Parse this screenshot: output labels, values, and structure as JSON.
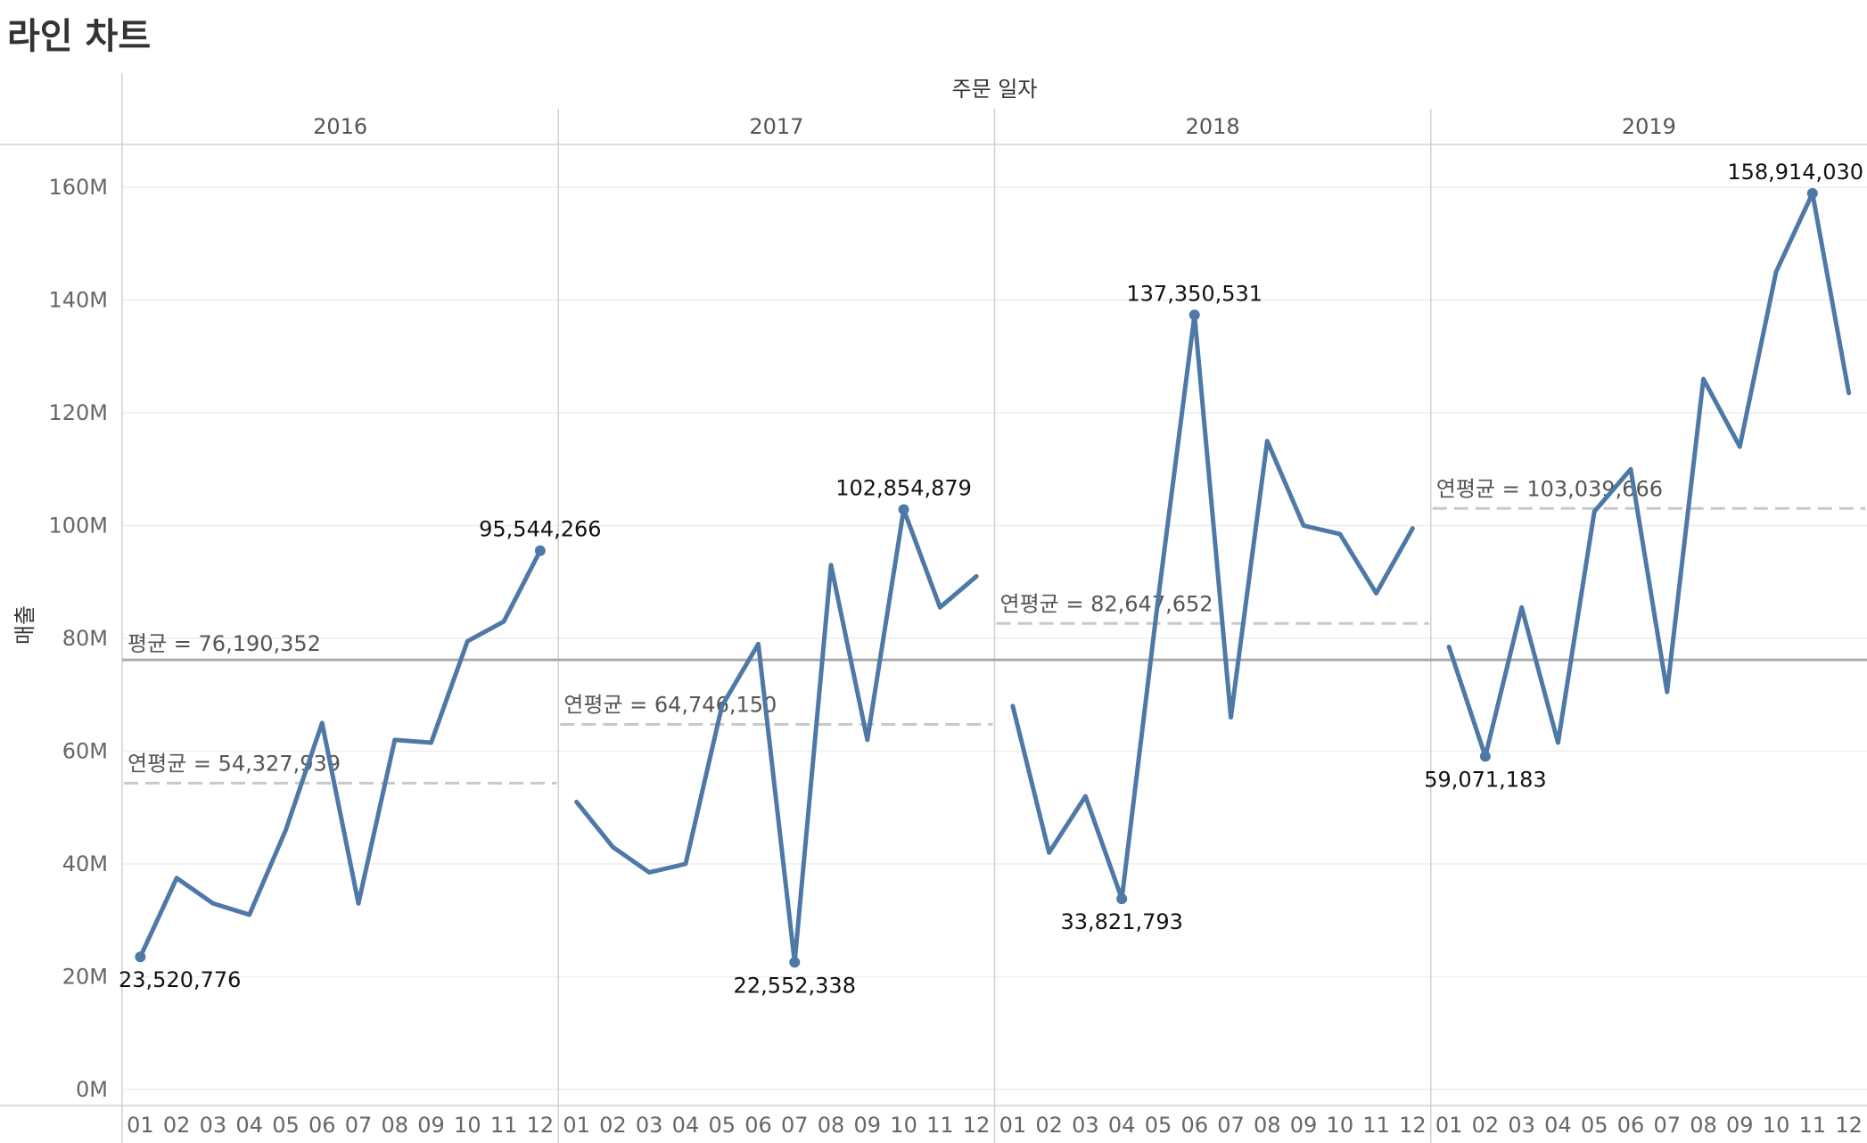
{
  "page": {
    "title": "라인 차트"
  },
  "chart_data": {
    "type": "line",
    "column_header": "주문 일자",
    "ylabel": "매출",
    "ylim": [
      0,
      165000000
    ],
    "y_ticks": [
      {
        "value": 0,
        "label": "0M"
      },
      {
        "value": 20000000,
        "label": "20M"
      },
      {
        "value": 40000000,
        "label": "40M"
      },
      {
        "value": 60000000,
        "label": "60M"
      },
      {
        "value": 80000000,
        "label": "80M"
      },
      {
        "value": 100000000,
        "label": "100M"
      },
      {
        "value": 120000000,
        "label": "120M"
      },
      {
        "value": 140000000,
        "label": "140M"
      },
      {
        "value": 160000000,
        "label": "160M"
      }
    ],
    "months": [
      "01",
      "02",
      "03",
      "04",
      "05",
      "06",
      "07",
      "08",
      "09",
      "10",
      "11",
      "12"
    ],
    "overall_average": {
      "value": 76190352,
      "label": "평균 = 76,190,352"
    },
    "panels": [
      {
        "year": "2016",
        "values": [
          23520776,
          37500000,
          33000000,
          31000000,
          46000000,
          65000000,
          33000000,
          62000000,
          61500000,
          79500000,
          83000000,
          95544266
        ],
        "annual_average": {
          "value": 54327939,
          "label": "연평균 = 54,327,939"
        },
        "labels": [
          {
            "month_index": 0,
            "text": "23,520,776",
            "pos": "below"
          },
          {
            "month_index": 11,
            "text": "95,544,266",
            "pos": "above"
          }
        ]
      },
      {
        "year": "2017",
        "values": [
          51000000,
          43000000,
          38500000,
          40000000,
          68000000,
          79000000,
          22552338,
          93000000,
          62000000,
          102854879,
          85500000,
          91000000
        ],
        "annual_average": {
          "value": 64746150,
          "label": "연평균 = 64,746,150"
        },
        "labels": [
          {
            "month_index": 6,
            "text": "22,552,338",
            "pos": "below"
          },
          {
            "month_index": 9,
            "text": "102,854,879",
            "pos": "above"
          }
        ]
      },
      {
        "year": "2018",
        "values": [
          68000000,
          42000000,
          52000000,
          33821793,
          87000000,
          137350531,
          66000000,
          115000000,
          100000000,
          98500000,
          88000000,
          99500000
        ],
        "annual_average": {
          "value": 82647652,
          "label": "연평균 = 82,647,652"
        },
        "labels": [
          {
            "month_index": 3,
            "text": "33,821,793",
            "pos": "below"
          },
          {
            "month_index": 5,
            "text": "137,350,531",
            "pos": "above"
          }
        ]
      },
      {
        "year": "2019",
        "values": [
          78500000,
          59071183,
          85500000,
          61500000,
          102500000,
          110000000,
          70500000,
          126000000,
          114000000,
          145000000,
          158914030,
          123500000
        ],
        "annual_average": {
          "value": 103039666,
          "label": "연평균 = 103,039,666"
        },
        "labels": [
          {
            "month_index": 1,
            "text": "59,071,183",
            "pos": "below"
          },
          {
            "month_index": 10,
            "text": "158,914,030",
            "pos": "above"
          }
        ]
      }
    ],
    "colors": {
      "line": "#4e79a7",
      "overall_average": "#aaaaaa",
      "annual_average": "#c8c8c8",
      "grid": "#eeeeee",
      "divider": "#d0d0d0"
    }
  }
}
